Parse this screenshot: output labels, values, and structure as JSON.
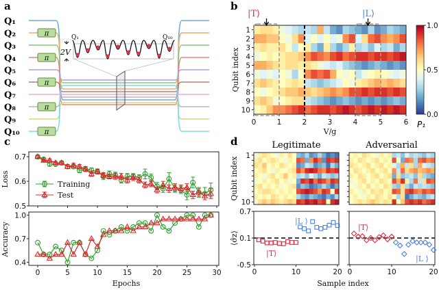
{
  "panels": {
    "a": "a",
    "b": "b",
    "c": "c",
    "d": "d"
  },
  "panel_a": {
    "qubit_labels": [
      "Q₁",
      "Q₂",
      "Q₃",
      "Q₄",
      "Q₅",
      "Q₆",
      "Q₇",
      "Q₈",
      "Q₉",
      "Q₁₀"
    ],
    "qubit_colors": [
      "#6baed6",
      "#f5a96a",
      "#7fc97f",
      "#f08080",
      "#b59cd9",
      "#b08070",
      "#f0a8dc",
      "#b8b8b8",
      "#d6d67a",
      "#7fd8e8"
    ],
    "pi_gate_label": "π",
    "pi_gate_qubits": [
      2,
      4,
      6,
      8,
      10
    ],
    "inset_left_label": "Q₁",
    "inset_right_label": "Q₁₀",
    "amplitude_label": "2V"
  },
  "chart_data": [
    {
      "id": "b",
      "type": "heatmap",
      "xlabel": "V/g",
      "ylabel": "Qubit index",
      "xlim": [
        0,
        6
      ],
      "xticks": [
        "0",
        "1",
        "2",
        "3",
        "4",
        "5",
        "6"
      ],
      "yticks": [
        "1",
        "2",
        "3",
        "4",
        "5",
        "6",
        "7",
        "8",
        "9",
        "10"
      ],
      "colorbar": {
        "label": "P₁",
        "range": [
          0,
          1
        ],
        "ticks": [
          "1.0",
          "0.5",
          "0.0"
        ],
        "colormap": "RdYlBu_r"
      },
      "x_step": 0.25,
      "values": [
        [
          0.55,
          0.6,
          0.6,
          0.55,
          0.45,
          0.4,
          0.35,
          0.3,
          0.35,
          0.3,
          0.7,
          0.35,
          0.2,
          0.15,
          0.3,
          0.25,
          0.2,
          0.15,
          0.3,
          0.15,
          0.2,
          0.3,
          0.25,
          0.2
        ],
        [
          0.7,
          0.7,
          0.65,
          0.65,
          0.5,
          0.45,
          0.6,
          0.75,
          0.4,
          0.5,
          0.4,
          0.5,
          0.4,
          0.45,
          0.75,
          0.85,
          0.4,
          0.6,
          0.8,
          0.85,
          0.75,
          0.7,
          0.75,
          0.85
        ],
        [
          0.55,
          0.6,
          0.55,
          0.55,
          0.6,
          0.5,
          0.35,
          0.5,
          0.55,
          0.3,
          0.2,
          0.55,
          0.3,
          0.2,
          0.3,
          0.55,
          0.3,
          0.35,
          0.25,
          0.4,
          0.3,
          0.35,
          0.2,
          0.3
        ],
        [
          0.45,
          0.5,
          0.55,
          0.5,
          0.55,
          0.6,
          0.6,
          0.65,
          0.75,
          0.85,
          0.8,
          0.75,
          0.85,
          0.9,
          0.8,
          0.85,
          0.9,
          0.9,
          0.85,
          0.9,
          0.9,
          0.85,
          0.9,
          0.95
        ],
        [
          0.7,
          0.7,
          0.65,
          0.6,
          0.55,
          0.6,
          0.6,
          0.55,
          0.6,
          0.55,
          0.45,
          0.4,
          0.35,
          0.4,
          0.3,
          0.25,
          0.2,
          0.15,
          0.2,
          0.25,
          0.2,
          0.15,
          0.2,
          0.15
        ],
        [
          0.45,
          0.4,
          0.45,
          0.4,
          0.5,
          0.45,
          0.3,
          0.5,
          0.75,
          0.85,
          0.8,
          0.85,
          0.7,
          0.5,
          0.45,
          0.5,
          0.35,
          0.45,
          0.5,
          0.55,
          0.5,
          0.45,
          0.4,
          0.45
        ],
        [
          0.6,
          0.65,
          0.6,
          0.55,
          0.5,
          0.55,
          0.6,
          0.55,
          0.35,
          0.3,
          0.25,
          0.3,
          0.35,
          0.4,
          0.5,
          0.45,
          0.55,
          0.6,
          0.65,
          0.7,
          0.65,
          0.7,
          0.65,
          0.6
        ],
        [
          0.5,
          0.45,
          0.5,
          0.55,
          0.6,
          0.65,
          0.65,
          0.7,
          0.65,
          0.6,
          0.65,
          0.7,
          0.75,
          0.7,
          0.75,
          0.85,
          0.85,
          0.9,
          0.85,
          0.9,
          0.9,
          0.85,
          0.9,
          0.85
        ],
        [
          0.6,
          0.65,
          0.6,
          0.45,
          0.5,
          0.55,
          0.6,
          0.6,
          0.35,
          0.3,
          0.25,
          0.2,
          0.15,
          0.2,
          0.25,
          0.2,
          0.15,
          0.2,
          0.15,
          0.2,
          0.15,
          0.2,
          0.25,
          0.2
        ],
        [
          0.5,
          0.55,
          0.65,
          0.75,
          0.75,
          0.8,
          0.85,
          0.9,
          0.8,
          0.85,
          0.9,
          0.9,
          0.85,
          0.9,
          0.95,
          0.9,
          0.85,
          0.9,
          0.95,
          0.9,
          0.95,
          0.9,
          0.95,
          0.9
        ]
      ],
      "annotations": {
        "T_label": "|T⟩",
        "T_color": "#e0283c",
        "T_at": 0.5,
        "T_window": [
          0,
          1
        ],
        "L_label": "|L⟩",
        "L_color": "#4a7fe0",
        "L_at": 4.5,
        "L_window": [
          4,
          5
        ],
        "divider": 2
      }
    },
    {
      "id": "c",
      "type": "line",
      "xlabel": "Epochs",
      "xlim": [
        -1.5,
        30.5
      ],
      "xticks": [
        "0",
        "5",
        "10",
        "15",
        "20",
        "25",
        "30"
      ],
      "loss": {
        "ylabel": "Loss",
        "ylim": [
          0.5,
          0.72
        ],
        "yticks": [
          "0.7",
          "0.6",
          "0.5"
        ],
        "series": [
          {
            "name": "Training",
            "color": "#2ca02c",
            "marker": "circle",
            "values": [
              0.7,
              0.69,
              0.67,
              0.67,
              0.675,
              0.66,
              0.66,
              0.645,
              0.65,
              0.645,
              0.64,
              0.62,
              0.63,
              0.625,
              0.605,
              0.62,
              0.62,
              0.615,
              0.63,
              0.615,
              0.58,
              0.57,
              0.61,
              0.57,
              0.565,
              0.545,
              0.595,
              0.555,
              0.55,
              0.565
            ],
            "errors": [
              0.005,
              0.006,
              0.007,
              0.007,
              0.008,
              0.008,
              0.008,
              0.01,
              0.01,
              0.01,
              0.01,
              0.012,
              0.012,
              0.012,
              0.012,
              0.012,
              0.012,
              0.012,
              0.02,
              0.015,
              0.015,
              0.015,
              0.025,
              0.015,
              0.015,
              0.02,
              0.022,
              0.02,
              0.025,
              0.028
            ]
          },
          {
            "name": "Test",
            "color": "#d62728",
            "marker": "triangle",
            "values": [
              0.7,
              0.685,
              0.685,
              0.675,
              0.675,
              0.66,
              0.665,
              0.66,
              0.65,
              0.63,
              0.64,
              0.625,
              0.62,
              0.62,
              0.62,
              0.605,
              0.615,
              0.605,
              0.585,
              0.59,
              0.565,
              0.585,
              0.57,
              0.575,
              0.57,
              0.575,
              0.545,
              0.555,
              0.54,
              0.55
            ],
            "errors": [
              0.005,
              0.006,
              0.006,
              0.006,
              0.007,
              0.008,
              0.008,
              0.008,
              0.01,
              0.01,
              0.01,
              0.01,
              0.01,
              0.012,
              0.012,
              0.012,
              0.012,
              0.012,
              0.012,
              0.012,
              0.012,
              0.015,
              0.015,
              0.015,
              0.015,
              0.015,
              0.015,
              0.015,
              0.015,
              0.02
            ]
          }
        ],
        "legend": "center-left"
      },
      "accuracy": {
        "ylabel": "Accuracy",
        "ylim": [
          0.36,
          1.04
        ],
        "yticks": [
          "1.0",
          "0.7",
          "0.4"
        ],
        "series": [
          {
            "name": "Training",
            "color": "#2ca02c",
            "marker": "circle",
            "values": [
              0.65,
              0.5,
              0.5,
              0.6,
              0.55,
              0.4,
              0.65,
              0.65,
              0.5,
              0.45,
              0.55,
              0.8,
              0.75,
              0.8,
              0.85,
              0.8,
              0.85,
              0.9,
              0.9,
              0.8,
              1.0,
              0.85,
              0.8,
              0.9,
              0.95,
              1.0,
              1.0,
              0.85,
              1.0,
              1.0
            ]
          },
          {
            "name": "Test",
            "color": "#d62728",
            "marker": "triangle",
            "values": [
              0.5,
              0.5,
              0.45,
              0.5,
              0.5,
              0.65,
              0.5,
              0.65,
              0.5,
              0.7,
              0.6,
              0.75,
              0.8,
              0.8,
              0.8,
              0.85,
              0.8,
              0.85,
              0.85,
              0.9,
              0.9,
              0.95,
              0.95,
              0.95,
              0.95,
              0.95,
              0.95,
              0.95,
              0.95,
              1.0
            ]
          }
        ]
      }
    },
    {
      "id": "d",
      "type": "heatmap+scatter",
      "xlabel": "Sample index",
      "heatmap_ylabel": "Qubit index",
      "heatmap_yticks": [
        "1",
        "10"
      ],
      "scatter_ylabel": "⟨σ̂z⟩",
      "scatter_ylim": [
        -0.5,
        0.7
      ],
      "scatter_yticks": [
        "0.7",
        "0.1",
        "-0.5"
      ],
      "xticks": [
        "0",
        "10",
        "20"
      ],
      "reference_line": 0.1,
      "T_color": "#e0283c",
      "L_color": "#4a7fe0",
      "T_label": "|T⟩",
      "L_label": "|L ⟩",
      "legitimate": {
        "title": "Legitimate",
        "marker": "square",
        "sigma_z_T": [
          0.06,
          0.03,
          -0.01,
          -0.01,
          0.0,
          -0.02,
          -0.03,
          0.02,
          0.0,
          0.0
        ],
        "sigma_z_L": [
          0.35,
          0.31,
          0.26,
          0.47,
          0.34,
          0.31,
          0.34,
          0.39,
          0.45,
          0.38
        ],
        "heatmap": [
          [
            0.45,
            0.55,
            0.6,
            0.55,
            0.5,
            0.45,
            0.55,
            0.5,
            0.6,
            0.5,
            0.25,
            0.2,
            0.3,
            0.15,
            0.2,
            0.3,
            0.2,
            0.1,
            0.15,
            0.1
          ],
          [
            0.55,
            0.6,
            0.5,
            0.55,
            0.6,
            0.55,
            0.5,
            0.45,
            0.55,
            0.5,
            0.85,
            0.8,
            0.2,
            0.75,
            0.9,
            0.8,
            0.15,
            0.9,
            0.85,
            0.9
          ],
          [
            0.6,
            0.55,
            0.65,
            0.5,
            0.55,
            0.5,
            0.6,
            0.55,
            0.5,
            0.55,
            0.15,
            0.2,
            0.35,
            0.3,
            0.15,
            0.2,
            0.25,
            0.1,
            0.3,
            0.2
          ],
          [
            0.5,
            0.55,
            0.6,
            0.5,
            0.45,
            0.55,
            0.5,
            0.5,
            0.55,
            0.6,
            0.85,
            0.75,
            0.9,
            0.95,
            0.9,
            0.8,
            0.75,
            0.9,
            0.85,
            0.9
          ],
          [
            0.55,
            0.5,
            0.45,
            0.55,
            0.6,
            0.5,
            0.55,
            0.65,
            0.5,
            0.55,
            0.3,
            0.35,
            0.25,
            0.4,
            0.3,
            0.2,
            0.35,
            0.3,
            0.25,
            0.3
          ],
          [
            0.45,
            0.5,
            0.55,
            0.5,
            0.55,
            0.6,
            0.5,
            0.55,
            0.45,
            0.5,
            0.2,
            0.9,
            0.85,
            0.95,
            0.8,
            0.9,
            0.85,
            0.75,
            0.9,
            0.85
          ],
          [
            0.55,
            0.6,
            0.5,
            0.55,
            0.5,
            0.55,
            0.45,
            0.5,
            0.55,
            0.6,
            0.15,
            0.25,
            0.2,
            0.1,
            0.15,
            0.2,
            0.3,
            0.2,
            0.1,
            0.2
          ],
          [
            0.5,
            0.55,
            0.6,
            0.6,
            0.55,
            0.5,
            0.55,
            0.5,
            0.55,
            0.5,
            0.85,
            0.9,
            0.95,
            0.9,
            0.85,
            0.75,
            0.9,
            0.85,
            0.5,
            0.9
          ],
          [
            0.55,
            0.5,
            0.55,
            0.5,
            0.6,
            0.55,
            0.5,
            0.55,
            0.5,
            0.55,
            0.3,
            0.2,
            0.15,
            0.25,
            0.2,
            0.15,
            0.1,
            0.2,
            0.15,
            0.3
          ],
          [
            0.45,
            0.6,
            0.65,
            0.6,
            0.65,
            0.6,
            0.55,
            0.6,
            0.65,
            0.6,
            0.9,
            0.85,
            0.95,
            0.9,
            0.95,
            0.85,
            0.9,
            0.5,
            0.9,
            0.95
          ]
        ]
      },
      "adversarial": {
        "title": "Adversarial",
        "marker": "diamond",
        "sigma_z_T": [
          0.2,
          0.13,
          0.14,
          0.05,
          0.1,
          0.05,
          0.12,
          0.16,
          0.07,
          0.13
        ],
        "sigma_z_L": [
          0.0,
          -0.07,
          -0.26,
          -0.05,
          0.03,
          0.0,
          0.0,
          0.0,
          -0.05,
          -0.17
        ],
        "heatmap": [
          [
            0.5,
            0.55,
            0.5,
            0.6,
            0.55,
            0.5,
            0.45,
            0.55,
            0.5,
            0.55,
            0.3,
            0.35,
            0.25,
            0.4,
            0.3,
            0.35,
            0.3,
            0.25,
            0.35,
            0.3
          ],
          [
            0.55,
            0.5,
            0.6,
            0.55,
            0.5,
            0.55,
            0.6,
            0.5,
            0.55,
            0.5,
            0.85,
            0.5,
            0.2,
            0.8,
            0.75,
            0.3,
            0.8,
            0.85,
            0.75,
            0.8
          ],
          [
            0.6,
            0.55,
            0.5,
            0.55,
            0.6,
            0.5,
            0.55,
            0.6,
            0.5,
            0.55,
            0.4,
            0.3,
            0.7,
            0.35,
            0.6,
            0.3,
            0.7,
            0.4,
            0.35,
            0.3
          ],
          [
            0.5,
            0.6,
            0.55,
            0.5,
            0.55,
            0.6,
            0.5,
            0.55,
            0.6,
            0.5,
            0.75,
            0.35,
            0.8,
            0.6,
            0.7,
            0.75,
            0.65,
            0.7,
            0.75,
            0.7
          ],
          [
            0.55,
            0.5,
            0.6,
            0.55,
            0.5,
            0.55,
            0.6,
            0.5,
            0.55,
            0.6,
            0.2,
            0.6,
            0.25,
            0.3,
            0.35,
            0.25,
            0.6,
            0.3,
            0.25,
            0.2
          ],
          [
            0.45,
            0.5,
            0.55,
            0.6,
            0.5,
            0.55,
            0.5,
            0.6,
            0.55,
            0.5,
            0.85,
            0.7,
            0.9,
            0.55,
            0.3,
            0.8,
            0.35,
            0.6,
            0.85,
            0.8
          ],
          [
            0.5,
            0.45,
            0.55,
            0.5,
            0.6,
            0.5,
            0.55,
            0.5,
            0.6,
            0.55,
            0.3,
            0.25,
            0.6,
            0.3,
            0.2,
            0.35,
            0.3,
            0.35,
            0.3,
            0.25
          ],
          [
            0.55,
            0.5,
            0.45,
            0.55,
            0.5,
            0.6,
            0.55,
            0.6,
            0.5,
            0.55,
            0.85,
            0.8,
            0.6,
            0.85,
            0.9,
            0.8,
            0.75,
            0.85,
            0.8,
            0.85
          ],
          [
            0.5,
            0.55,
            0.5,
            0.45,
            0.55,
            0.5,
            0.6,
            0.55,
            0.5,
            0.6,
            0.5,
            0.3,
            0.6,
            0.1,
            0.2,
            0.3,
            0.25,
            0.2,
            0.3,
            0.35
          ],
          [
            0.5,
            0.55,
            0.6,
            0.55,
            0.6,
            0.65,
            0.6,
            0.55,
            0.6,
            0.55,
            0.9,
            0.5,
            0.65,
            0.85,
            0.9,
            0.85,
            0.9,
            0.8,
            0.85,
            0.9
          ]
        ]
      }
    }
  ]
}
